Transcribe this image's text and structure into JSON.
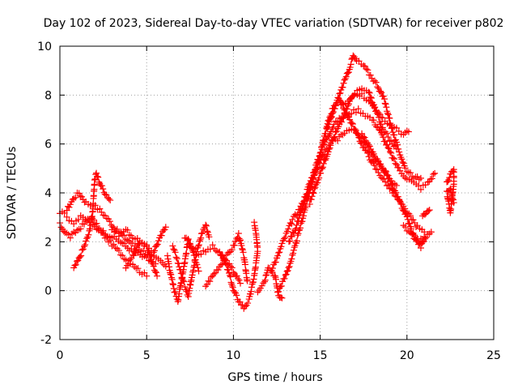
{
  "chart_data": {
    "type": "scatter",
    "title": "Day 102 of 2023, Sidereal Day-to-day VTEC variation (SDTVAR) for receiver p802",
    "xlabel": "GPS time / hours",
    "ylabel": "SDTVAR / TECUs",
    "xlim": [
      0,
      25
    ],
    "ylim": [
      -2,
      10
    ],
    "xticks": [
      "0",
      "5",
      "10",
      "15",
      "20",
      "25"
    ],
    "xtick_values": [
      0,
      5,
      10,
      15,
      20,
      25
    ],
    "yticks": [
      "-2",
      "0",
      "2",
      "4",
      "6",
      "8",
      "10"
    ],
    "ytick_values": [
      -2,
      0,
      2,
      4,
      6,
      8,
      10
    ],
    "grid": true,
    "marker": "+",
    "series": [
      {
        "name": "SDTVAR",
        "color": "#ff0000",
        "tracks": [
          [
            [
              0.0,
              3.1
            ],
            [
              0.4,
              3.3
            ],
            [
              0.8,
              3.8
            ],
            [
              1.1,
              4.0
            ],
            [
              1.5,
              3.6
            ],
            [
              1.9,
              3.5
            ],
            [
              2.3,
              3.3
            ],
            [
              2.8,
              2.9
            ],
            [
              3.2,
              2.5
            ],
            [
              3.7,
              2.2
            ],
            [
              4.2,
              1.9
            ],
            [
              4.8,
              1.6
            ],
            [
              5.3,
              1.4
            ],
            [
              5.8,
              1.2
            ],
            [
              6.1,
              1.0
            ]
          ],
          [
            [
              0.0,
              2.7
            ],
            [
              0.3,
              2.4
            ],
            [
              0.6,
              2.2
            ],
            [
              0.9,
              2.4
            ],
            [
              1.2,
              2.6
            ],
            [
              1.5,
              2.8
            ],
            [
              1.8,
              3.0
            ],
            [
              2.2,
              2.6
            ],
            [
              2.6,
              2.2
            ],
            [
              3.0,
              1.9
            ],
            [
              3.4,
              1.6
            ],
            [
              3.8,
              1.3
            ],
            [
              4.2,
              1.1
            ],
            [
              4.6,
              0.8
            ],
            [
              5.0,
              0.6
            ]
          ],
          [
            [
              0.4,
              3.0
            ],
            [
              0.8,
              2.8
            ],
            [
              1.2,
              3.0
            ],
            [
              1.6,
              2.9
            ],
            [
              2.0,
              2.6
            ],
            [
              2.5,
              2.4
            ],
            [
              3.0,
              2.2
            ],
            [
              3.5,
              2.0
            ],
            [
              4.0,
              1.7
            ],
            [
              4.5,
              1.5
            ],
            [
              5.0,
              1.3
            ],
            [
              5.5,
              1.1
            ]
          ],
          [
            [
              0.8,
              0.9
            ],
            [
              1.1,
              1.3
            ],
            [
              1.4,
              1.8
            ],
            [
              1.7,
              2.4
            ],
            [
              1.9,
              3.3
            ],
            [
              2.0,
              4.5
            ],
            [
              2.1,
              4.8
            ],
            [
              2.3,
              4.4
            ],
            [
              2.6,
              4.0
            ],
            [
              2.9,
              3.7
            ]
          ],
          [
            [
              3.0,
              2.5
            ],
            [
              3.4,
              2.3
            ],
            [
              3.8,
              2.5
            ],
            [
              4.2,
              2.2
            ],
            [
              4.6,
              2.0
            ],
            [
              5.0,
              1.8
            ],
            [
              5.4,
              1.6
            ],
            [
              5.8,
              2.2
            ],
            [
              6.1,
              2.6
            ]
          ],
          [
            [
              3.8,
              1.0
            ],
            [
              4.2,
              1.4
            ],
            [
              4.6,
              2.0
            ],
            [
              5.0,
              1.8
            ],
            [
              5.3,
              1.2
            ],
            [
              5.6,
              0.6
            ]
          ],
          [
            [
              6.2,
              1.4
            ],
            [
              6.4,
              0.6
            ],
            [
              6.6,
              0.0
            ],
            [
              6.8,
              -0.4
            ],
            [
              7.0,
              0.4
            ],
            [
              7.2,
              1.2
            ],
            [
              7.4,
              2.1
            ],
            [
              7.6,
              1.8
            ],
            [
              7.8,
              1.2
            ],
            [
              8.0,
              0.8
            ]
          ],
          [
            [
              6.5,
              1.8
            ],
            [
              6.8,
              1.2
            ],
            [
              7.1,
              0.4
            ],
            [
              7.4,
              -0.2
            ],
            [
              7.6,
              0.6
            ],
            [
              7.9,
              1.6
            ],
            [
              8.2,
              2.4
            ],
            [
              8.4,
              2.7
            ],
            [
              8.6,
              2.2
            ]
          ],
          [
            [
              7.2,
              2.2
            ],
            [
              7.6,
              1.8
            ],
            [
              8.0,
              1.5
            ],
            [
              8.4,
              1.6
            ],
            [
              8.8,
              1.8
            ],
            [
              9.2,
              1.5
            ],
            [
              9.6,
              1.2
            ],
            [
              10.0,
              0.8
            ],
            [
              10.4,
              0.3
            ]
          ],
          [
            [
              8.4,
              0.2
            ],
            [
              8.8,
              0.6
            ],
            [
              9.2,
              1.0
            ],
            [
              9.6,
              1.4
            ],
            [
              10.0,
              1.8
            ],
            [
              10.3,
              2.3
            ],
            [
              10.6,
              1.4
            ],
            [
              10.8,
              0.4
            ]
          ],
          [
            [
              9.2,
              1.6
            ],
            [
              9.5,
              1.2
            ],
            [
              9.8,
              0.6
            ],
            [
              10.0,
              0.0
            ],
            [
              10.3,
              -0.4
            ],
            [
              10.6,
              -0.7
            ],
            [
              10.9,
              -0.4
            ],
            [
              11.2,
              0.6
            ],
            [
              11.4,
              1.6
            ],
            [
              11.3,
              2.4
            ],
            [
              11.2,
              2.8
            ]
          ],
          [
            [
              11.4,
              0.0
            ],
            [
              11.8,
              0.4
            ],
            [
              12.0,
              1.0
            ],
            [
              12.4,
              0.6
            ],
            [
              12.6,
              -0.2
            ],
            [
              12.8,
              -0.3
            ]
          ],
          [
            [
              12.2,
              0.9
            ],
            [
              12.5,
              1.3
            ],
            [
              12.8,
              1.9
            ],
            [
              13.1,
              2.4
            ],
            [
              13.4,
              2.9
            ],
            [
              13.7,
              3.2
            ],
            [
              14.0,
              3.6
            ],
            [
              14.3,
              4.2
            ],
            [
              14.6,
              4.8
            ],
            [
              14.9,
              5.4
            ],
            [
              15.2,
              6.0
            ],
            [
              15.5,
              6.4
            ],
            [
              15.8,
              6.8
            ],
            [
              16.1,
              7.0
            ],
            [
              16.4,
              7.2
            ],
            [
              16.8,
              7.3
            ],
            [
              17.2,
              7.4
            ],
            [
              17.6,
              7.2
            ],
            [
              18.0,
              7.0
            ],
            [
              18.4,
              6.6
            ],
            [
              18.8,
              6.0
            ],
            [
              19.2,
              5.4
            ],
            [
              19.6,
              4.9
            ],
            [
              20.0,
              4.6
            ],
            [
              20.4,
              4.4
            ],
            [
              20.8,
              4.2
            ],
            [
              21.2,
              4.4
            ],
            [
              21.6,
              4.8
            ]
          ],
          [
            [
              12.6,
              0.0
            ],
            [
              13.0,
              0.6
            ],
            [
              13.4,
              1.4
            ],
            [
              13.7,
              2.2
            ],
            [
              14.0,
              3.0
            ],
            [
              14.3,
              3.8
            ],
            [
              14.6,
              4.6
            ],
            [
              14.9,
              5.3
            ],
            [
              15.2,
              6.2
            ],
            [
              15.5,
              7.0
            ],
            [
              15.8,
              7.6
            ],
            [
              16.1,
              7.8
            ],
            [
              16.4,
              7.4
            ],
            [
              16.7,
              7.0
            ],
            [
              17.0,
              6.6
            ],
            [
              17.4,
              6.0
            ],
            [
              17.8,
              5.5
            ],
            [
              18.2,
              5.0
            ],
            [
              18.6,
              4.6
            ],
            [
              19.0,
              4.2
            ],
            [
              19.4,
              3.8
            ],
            [
              19.8,
              3.4
            ],
            [
              20.2,
              3.0
            ],
            [
              20.6,
              2.6
            ],
            [
              21.0,
              2.4
            ]
          ],
          [
            [
              13.2,
              2.0
            ],
            [
              13.6,
              2.6
            ],
            [
              14.0,
              3.4
            ],
            [
              14.4,
              4.2
            ],
            [
              14.8,
              5.0
            ],
            [
              15.2,
              5.6
            ],
            [
              15.6,
              6.0
            ],
            [
              16.0,
              6.2
            ],
            [
              16.4,
              6.5
            ],
            [
              16.8,
              6.6
            ],
            [
              17.2,
              6.4
            ],
            [
              17.6,
              6.0
            ],
            [
              18.0,
              5.6
            ],
            [
              18.4,
              5.2
            ],
            [
              18.8,
              4.8
            ],
            [
              19.2,
              4.2
            ],
            [
              19.6,
              3.6
            ],
            [
              20.0,
              3.0
            ],
            [
              20.3,
              2.4
            ],
            [
              20.6,
              2.0
            ],
            [
              20.8,
              1.8
            ],
            [
              21.1,
              2.2
            ],
            [
              21.4,
              2.4
            ]
          ],
          [
            [
              14.4,
              3.6
            ],
            [
              14.8,
              4.4
            ],
            [
              15.2,
              5.2
            ],
            [
              15.6,
              6.0
            ],
            [
              16.0,
              6.6
            ],
            [
              16.4,
              7.2
            ],
            [
              16.8,
              7.9
            ],
            [
              17.0,
              8.1
            ],
            [
              17.4,
              8.0
            ],
            [
              17.8,
              7.8
            ],
            [
              18.2,
              7.4
            ],
            [
              18.6,
              7.0
            ],
            [
              19.0,
              6.8
            ],
            [
              19.4,
              6.6
            ],
            [
              19.8,
              6.4
            ],
            [
              20.1,
              6.5
            ]
          ],
          [
            [
              15.4,
              6.6
            ],
            [
              15.8,
              7.4
            ],
            [
              16.2,
              8.2
            ],
            [
              16.6,
              8.9
            ],
            [
              16.9,
              9.6
            ],
            [
              17.1,
              9.4
            ],
            [
              17.5,
              9.2
            ],
            [
              17.9,
              8.8
            ],
            [
              18.3,
              8.4
            ],
            [
              18.7,
              7.8
            ],
            [
              19.0,
              7.0
            ],
            [
              19.3,
              6.2
            ],
            [
              19.6,
              5.6
            ],
            [
              19.9,
              5.0
            ],
            [
              20.2,
              4.8
            ],
            [
              20.5,
              4.6
            ],
            [
              20.8,
              4.6
            ]
          ],
          [
            [
              16.2,
              7.6
            ],
            [
              16.6,
              7.8
            ],
            [
              17.0,
              8.1
            ],
            [
              17.4,
              8.2
            ],
            [
              17.8,
              8.1
            ],
            [
              18.2,
              7.4
            ],
            [
              18.6,
              6.6
            ],
            [
              19.0,
              6.2
            ],
            [
              19.4,
              5.8
            ]
          ],
          [
            [
              17.4,
              6.4
            ],
            [
              17.8,
              6.0
            ],
            [
              18.2,
              5.4
            ],
            [
              18.6,
              5.0
            ],
            [
              19.0,
              4.6
            ],
            [
              19.4,
              4.3
            ]
          ],
          [
            [
              19.8,
              2.6
            ],
            [
              20.1,
              2.4
            ],
            [
              20.4,
              2.2
            ],
            [
              20.7,
              2.0
            ],
            [
              21.0,
              2.2
            ]
          ],
          [
            [
              20.9,
              3.0
            ],
            [
              21.1,
              3.2
            ],
            [
              21.3,
              3.3
            ]
          ],
          [
            [
              22.3,
              4.4
            ],
            [
              22.5,
              4.8
            ],
            [
              22.7,
              5.0
            ],
            [
              22.7,
              4.4
            ],
            [
              22.6,
              3.8
            ],
            [
              22.5,
              3.2
            ],
            [
              22.4,
              3.6
            ],
            [
              22.3,
              4.0
            ],
            [
              22.5,
              4.2
            ],
            [
              22.7,
              3.6
            ]
          ]
        ]
      }
    ]
  }
}
